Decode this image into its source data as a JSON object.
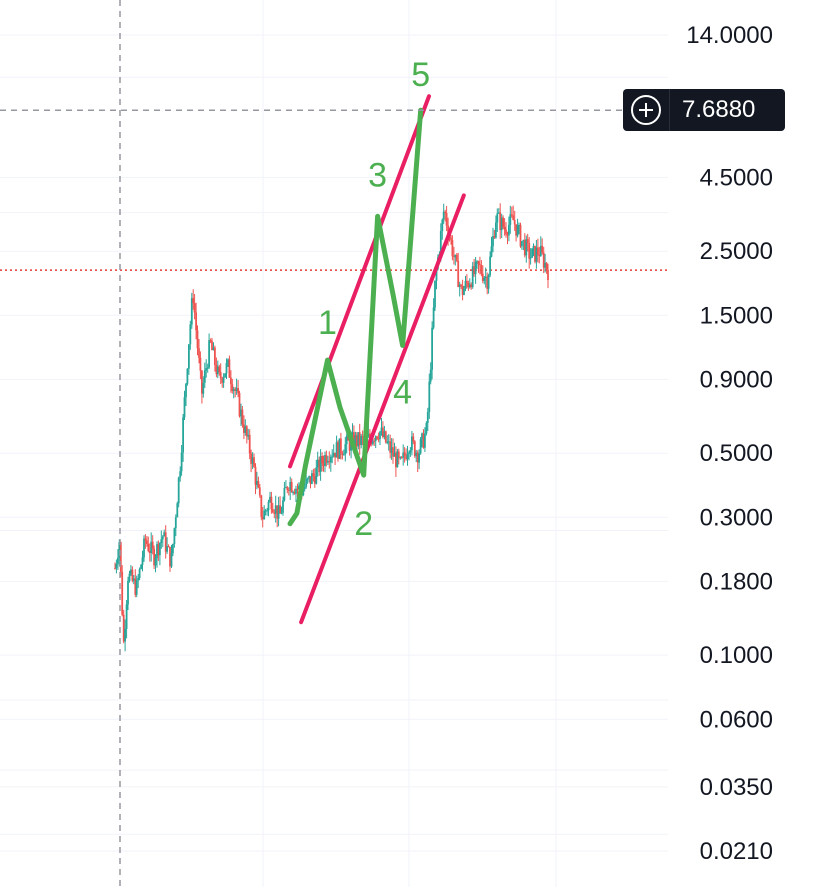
{
  "chart_data": {
    "type": "candlestick",
    "y_scale": "log",
    "ylim": [
      0.018,
      16.5
    ],
    "y_ticks": [
      {
        "value": 14.0,
        "label": "14.0000"
      },
      {
        "value": 4.5,
        "label": "4.5000"
      },
      {
        "value": 2.5,
        "label": "2.5000"
      },
      {
        "value": 1.5,
        "label": "1.5000"
      },
      {
        "value": 0.9,
        "label": "0.9000"
      },
      {
        "value": 0.5,
        "label": "0.5000"
      },
      {
        "value": 0.3,
        "label": "0.3000"
      },
      {
        "value": 0.18,
        "label": "0.1800"
      },
      {
        "value": 0.1,
        "label": "0.1000"
      },
      {
        "value": 0.06,
        "label": "0.0600"
      },
      {
        "value": 0.035,
        "label": "0.0350"
      },
      {
        "value": 0.021,
        "label": "0.0210"
      }
    ],
    "extra_gridlines": [
      10.0,
      3.4,
      0.27,
      0.07,
      0.04,
      0.024
    ],
    "grid": true,
    "crosshair": {
      "price": 7.688,
      "label": "7.6880"
    },
    "current_price": 2.15,
    "price_path": [
      [
        0.0,
        0.2
      ],
      [
        0.01,
        0.25
      ],
      [
        0.02,
        0.11
      ],
      [
        0.03,
        0.19
      ],
      [
        0.05,
        0.17
      ],
      [
        0.07,
        0.25
      ],
      [
        0.09,
        0.22
      ],
      [
        0.11,
        0.26
      ],
      [
        0.13,
        0.21
      ],
      [
        0.15,
        0.45
      ],
      [
        0.17,
        1.2
      ],
      [
        0.18,
        1.8
      ],
      [
        0.2,
        0.8
      ],
      [
        0.22,
        1.2
      ],
      [
        0.24,
        0.9
      ],
      [
        0.26,
        1.0
      ],
      [
        0.28,
        0.8
      ],
      [
        0.3,
        0.6
      ],
      [
        0.32,
        0.45
      ],
      [
        0.34,
        0.3
      ],
      [
        0.36,
        0.35
      ],
      [
        0.38,
        0.3
      ],
      [
        0.4,
        0.4
      ],
      [
        0.43,
        0.37
      ],
      [
        0.46,
        0.42
      ],
      [
        0.49,
        0.5
      ],
      [
        0.52,
        0.52
      ],
      [
        0.55,
        0.55
      ],
      [
        0.58,
        0.55
      ],
      [
        0.61,
        0.6
      ],
      [
        0.64,
        0.5
      ],
      [
        0.66,
        0.45
      ],
      [
        0.68,
        0.55
      ],
      [
        0.7,
        0.5
      ],
      [
        0.72,
        0.6
      ],
      [
        0.74,
        2.0
      ],
      [
        0.76,
        3.5
      ],
      [
        0.78,
        2.5
      ],
      [
        0.8,
        1.8
      ],
      [
        0.82,
        2.0
      ],
      [
        0.84,
        2.2
      ],
      [
        0.86,
        2.0
      ],
      [
        0.88,
        3.3
      ],
      [
        0.9,
        3.0
      ],
      [
        0.92,
        3.2
      ],
      [
        0.94,
        2.7
      ],
      [
        0.96,
        2.4
      ],
      [
        0.98,
        2.5
      ],
      [
        1.0,
        2.15
      ]
    ],
    "x_span": [
      0.245,
      0.88
    ],
    "wave_points": [
      {
        "t": 0.0,
        "price": 0.285,
        "label": ""
      },
      {
        "t": 0.025,
        "price": 0.31,
        "label": ""
      },
      {
        "t": 0.055,
        "price": 0.45,
        "label": ""
      },
      {
        "t": 0.135,
        "price": 1.05,
        "label": "1"
      },
      {
        "t": 0.18,
        "price": 0.72,
        "label": ""
      },
      {
        "t": 0.265,
        "price": 0.42,
        "label": "2"
      },
      {
        "t": 0.315,
        "price": 3.3,
        "label": "3"
      },
      {
        "t": 0.37,
        "price": 1.78,
        "label": ""
      },
      {
        "t": 0.405,
        "price": 1.18,
        "label": "4"
      },
      {
        "t": 0.47,
        "price": 7.688,
        "label": "5"
      }
    ],
    "channel": {
      "upper": {
        "p1": [
          0.0,
          0.45
        ],
        "p2": [
          0.5,
          8.6
        ]
      },
      "lower": {
        "p1": [
          0.04,
          0.13
        ],
        "p2": [
          0.625,
          3.9
        ]
      }
    },
    "colors": {
      "up": "#26a69a",
      "down": "#ef5350",
      "wave": "#4caf50",
      "channel": "#e91e63",
      "grid": "#f0f3fa",
      "crosshair": "#9598a1",
      "current_price_line": "#e53935"
    }
  }
}
